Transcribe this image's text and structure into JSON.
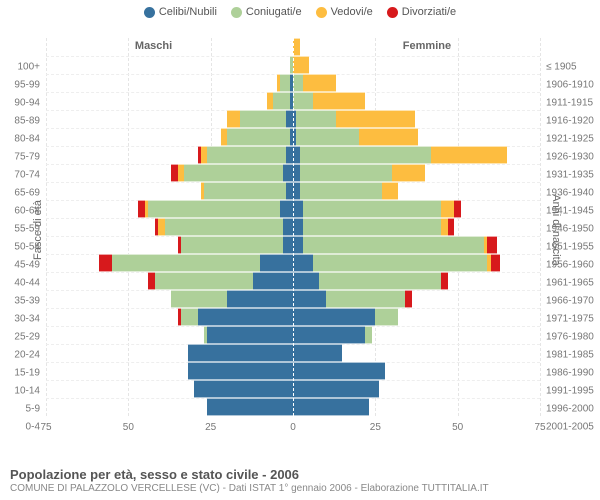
{
  "legend": {
    "items": [
      {
        "label": "Celibi/Nubili",
        "color": "#37719e"
      },
      {
        "label": "Coniugati/e",
        "color": "#aed099"
      },
      {
        "label": "Vedovi/e",
        "color": "#fdbd40"
      },
      {
        "label": "Divorziati/e",
        "color": "#d7191c"
      }
    ]
  },
  "colors": {
    "celibi": "#37719e",
    "coniugati": "#aed099",
    "vedovi": "#fdbd40",
    "divorziati": "#d7191c",
    "bg": "#ffffff",
    "grid": "#e5e5e5",
    "axis_text": "#777777"
  },
  "axis": {
    "x_ticks": [
      -75,
      -50,
      -25,
      0,
      25,
      50,
      75
    ],
    "x_max": 75,
    "y_left_title": "Fasce di età",
    "y_right_title": "Anni di nascita",
    "half_left": "Maschi",
    "half_right": "Femmine",
    "age_labels": [
      "0-4",
      "5-9",
      "10-14",
      "15-19",
      "20-24",
      "25-29",
      "30-34",
      "35-39",
      "40-44",
      "45-49",
      "50-54",
      "55-59",
      "60-64",
      "65-69",
      "70-74",
      "75-79",
      "80-84",
      "85-89",
      "90-94",
      "95-99",
      "100+"
    ],
    "birth_labels": [
      "2001-2005",
      "1996-2000",
      "1991-1995",
      "1986-1990",
      "1981-1985",
      "1976-1980",
      "1971-1975",
      "1966-1970",
      "1961-1965",
      "1956-1960",
      "1951-1955",
      "1946-1950",
      "1941-1945",
      "1936-1940",
      "1931-1935",
      "1926-1930",
      "1921-1925",
      "1916-1920",
      "1911-1915",
      "1906-1910",
      "≤ 1905"
    ]
  },
  "rows": [
    {
      "m": [
        26,
        0,
        0,
        0
      ],
      "f": [
        23,
        0,
        0,
        0
      ]
    },
    {
      "m": [
        30,
        0,
        0,
        0
      ],
      "f": [
        26,
        0,
        0,
        0
      ]
    },
    {
      "m": [
        32,
        0,
        0,
        0
      ],
      "f": [
        28,
        0,
        0,
        0
      ]
    },
    {
      "m": [
        32,
        0,
        0,
        0
      ],
      "f": [
        15,
        0,
        0,
        0
      ]
    },
    {
      "m": [
        26,
        1,
        0,
        0
      ],
      "f": [
        22,
        2,
        0,
        0
      ]
    },
    {
      "m": [
        29,
        5,
        0,
        1
      ],
      "f": [
        25,
        7,
        0,
        0
      ]
    },
    {
      "m": [
        20,
        17,
        0,
        0
      ],
      "f": [
        10,
        24,
        0,
        2
      ]
    },
    {
      "m": [
        12,
        30,
        0,
        2
      ],
      "f": [
        8,
        37,
        0,
        2
      ]
    },
    {
      "m": [
        10,
        45,
        0,
        4
      ],
      "f": [
        6,
        53,
        1,
        3
      ]
    },
    {
      "m": [
        3,
        31,
        0,
        1
      ],
      "f": [
        3,
        55,
        1,
        3
      ]
    },
    {
      "m": [
        3,
        36,
        2,
        1
      ],
      "f": [
        3,
        42,
        2,
        2
      ]
    },
    {
      "m": [
        4,
        40,
        1,
        2
      ],
      "f": [
        3,
        42,
        4,
        2
      ]
    },
    {
      "m": [
        2,
        25,
        1,
        0
      ],
      "f": [
        2,
        25,
        5,
        0
      ]
    },
    {
      "m": [
        3,
        30,
        2,
        2
      ],
      "f": [
        2,
        28,
        10,
        0
      ]
    },
    {
      "m": [
        2,
        24,
        2,
        1
      ],
      "f": [
        2,
        40,
        23,
        0
      ]
    },
    {
      "m": [
        1,
        19,
        2,
        0
      ],
      "f": [
        1,
        19,
        18,
        0
      ]
    },
    {
      "m": [
        2,
        14,
        4,
        0
      ],
      "f": [
        1,
        12,
        24,
        0
      ]
    },
    {
      "m": [
        1,
        5,
        2,
        0
      ],
      "f": [
        0,
        6,
        16,
        0
      ]
    },
    {
      "m": [
        1,
        3,
        1,
        0
      ],
      "f": [
        0,
        3,
        10,
        0
      ]
    },
    {
      "m": [
        0,
        1,
        0,
        0
      ],
      "f": [
        0,
        0,
        5,
        0
      ]
    },
    {
      "m": [
        0,
        0,
        0,
        0
      ],
      "f": [
        0,
        0,
        2,
        0
      ]
    }
  ],
  "footer": {
    "title": "Popolazione per età, sesso e stato civile - 2006",
    "sub": "COMUNE DI PALAZZOLO VERCELLESE (VC) - Dati ISTAT 1° gennaio 2006 - Elaborazione TUTTITALIA.IT"
  }
}
